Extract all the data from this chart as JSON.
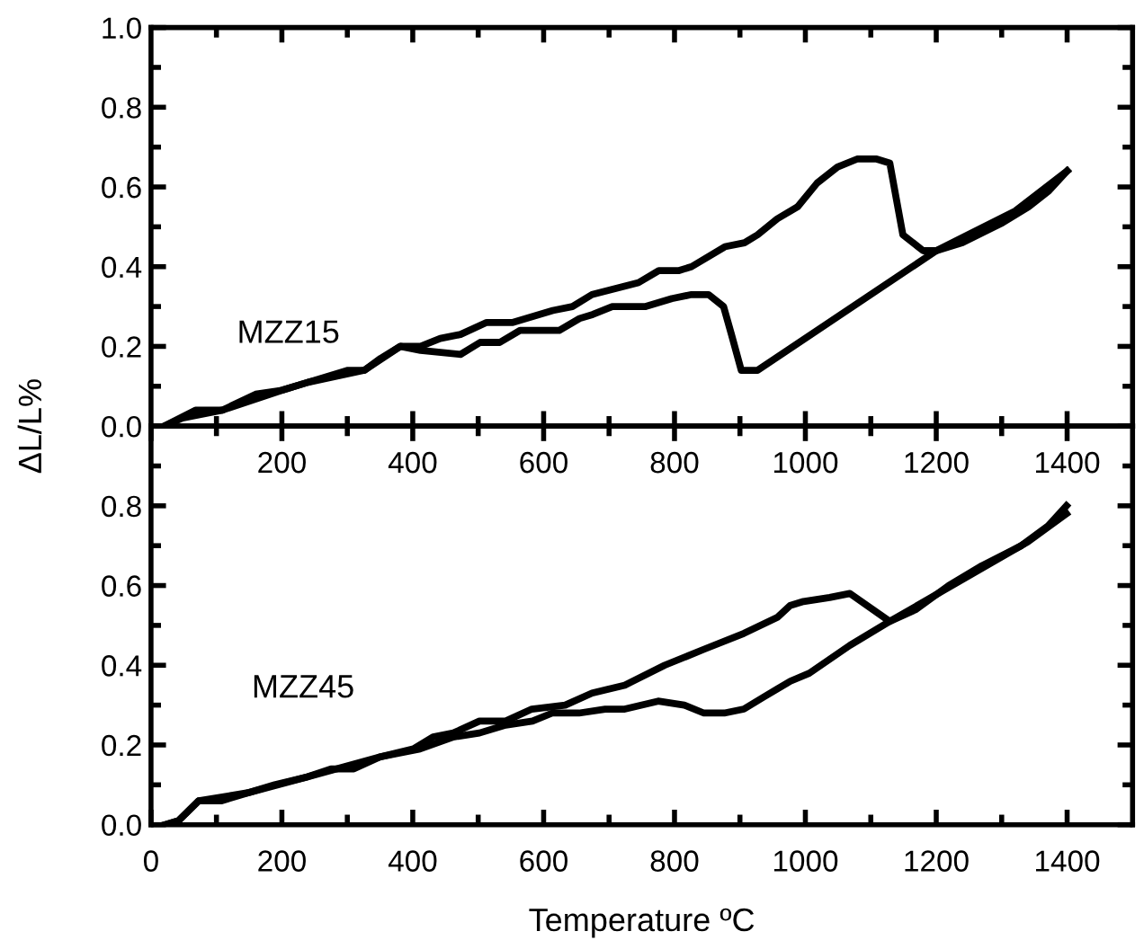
{
  "chart_data": [
    {
      "type": "line",
      "ylabel": "ΔL/L%",
      "annotations": [
        "MZZ15"
      ],
      "xlim": [
        0,
        1500
      ],
      "ylim": [
        0,
        1.0
      ],
      "xticks": [
        {
          "value": 100,
          "label": null
        },
        200,
        {
          "value": 300,
          "label": null
        },
        400,
        {
          "value": 500,
          "label": null
        },
        600,
        {
          "value": 700,
          "label": null
        },
        800,
        {
          "value": 900,
          "label": null
        },
        1000,
        {
          "value": 1100,
          "label": null
        },
        1200,
        {
          "value": 1300,
          "label": null
        },
        1400
      ],
      "yticks": [
        {
          "value": 0,
          "label": "0.0"
        },
        {
          "value": 0.1,
          "label": null
        },
        0.2,
        {
          "value": 0.3,
          "label": null
        },
        0.4,
        {
          "value": 0.5,
          "label": null
        },
        0.6,
        {
          "value": 0.7,
          "label": null
        },
        0.8,
        {
          "value": 0.9,
          "label": null
        },
        {
          "value": 1.0,
          "label": "1.0"
        }
      ],
      "grid": false,
      "legend": false,
      "marker": "none",
      "line_style": "solid",
      "series": [
        {
          "color": "#000000",
          "x": [
            20,
            68,
            109,
            160,
            200,
            240,
            301,
            326,
            351,
            381,
            412,
            442,
            473,
            513,
            553,
            614,
            644,
            674,
            745,
            776,
            806,
            826,
            877,
            907,
            927,
            957,
            988,
            1018,
            1049,
            1079,
            1109,
            1129,
            1139,
            1149,
            1180,
            1200,
            1240,
            1301,
            1341,
            1372,
            1400
          ],
          "values": [
            0.0,
            0.04,
            0.04,
            0.08,
            0.09,
            0.11,
            0.14,
            0.14,
            0.17,
            0.2,
            0.2,
            0.22,
            0.23,
            0.26,
            0.26,
            0.29,
            0.3,
            0.33,
            0.36,
            0.39,
            0.39,
            0.4,
            0.45,
            0.46,
            0.48,
            0.52,
            0.55,
            0.61,
            0.65,
            0.67,
            0.67,
            0.66,
            0.57,
            0.48,
            0.44,
            0.44,
            0.46,
            0.51,
            0.55,
            0.59,
            0.64
          ]
        },
        {
          "color": "#000000",
          "x": [
            1400,
            1321,
            1200,
            927,
            902,
            887,
            875,
            852,
            826,
            796,
            756,
            705,
            675,
            655,
            624,
            594,
            564,
            533,
            503,
            473,
            412,
            381,
            326,
            240,
            200,
            109,
            48,
            20
          ],
          "values": [
            0.64,
            0.54,
            0.44,
            0.14,
            0.14,
            0.23,
            0.3,
            0.33,
            0.33,
            0.32,
            0.3,
            0.3,
            0.28,
            0.27,
            0.24,
            0.24,
            0.24,
            0.21,
            0.21,
            0.18,
            0.19,
            0.2,
            0.14,
            0.11,
            0.09,
            0.04,
            0.02,
            0.0
          ]
        }
      ]
    },
    {
      "type": "line",
      "xlabel": "Temperature ºC",
      "annotations": [
        "MZZ45"
      ],
      "xlim": [
        0,
        1500
      ],
      "ylim": [
        0,
        1.0
      ],
      "xticks": [
        0,
        {
          "value": 100,
          "label": null
        },
        200,
        {
          "value": 300,
          "label": null
        },
        400,
        {
          "value": 500,
          "label": null
        },
        600,
        {
          "value": 700,
          "label": null
        },
        800,
        {
          "value": 900,
          "label": null
        },
        1000,
        {
          "value": 1100,
          "label": null
        },
        1200,
        {
          "value": 1300,
          "label": null
        },
        1400
      ],
      "yticks": [
        {
          "value": 0,
          "label": "0.0"
        },
        {
          "value": 0.1,
          "label": null
        },
        0.2,
        {
          "value": 0.3,
          "label": null
        },
        0.4,
        {
          "value": 0.5,
          "label": null
        },
        0.6,
        {
          "value": 0.7,
          "label": null
        },
        0.8,
        {
          "value": 0.9,
          "label": null
        }
      ],
      "grid": false,
      "legend": false,
      "marker": "none",
      "line_style": "solid",
      "series": [
        {
          "color": "#000000",
          "x": [
            22,
            42,
            73,
            108,
            148,
            189,
            239,
            275,
            310,
            350,
            401,
            431,
            462,
            502,
            542,
            582,
            633,
            674,
            724,
            785,
            845,
            906,
            957,
            977,
            997,
            1037,
            1068,
            1129,
            1169,
            1219,
            1270,
            1330,
            1371,
            1399
          ],
          "values": [
            0.0,
            0.01,
            0.06,
            0.06,
            0.08,
            0.1,
            0.12,
            0.14,
            0.14,
            0.17,
            0.19,
            0.22,
            0.23,
            0.26,
            0.26,
            0.29,
            0.3,
            0.33,
            0.35,
            0.4,
            0.44,
            0.48,
            0.52,
            0.55,
            0.56,
            0.57,
            0.58,
            0.51,
            0.54,
            0.6,
            0.65,
            0.7,
            0.75,
            0.8
          ]
        },
        {
          "color": "#000000",
          "x": [
            1399,
            1340,
            1129,
            1068,
            1006,
            977,
            936,
            906,
            876,
            845,
            815,
            775,
            724,
            694,
            654,
            613,
            583,
            542,
            502,
            462,
            411,
            350,
            239,
            148,
            73,
            42,
            22
          ],
          "values": [
            0.78,
            0.71,
            0.51,
            0.45,
            0.38,
            0.36,
            0.32,
            0.29,
            0.28,
            0.28,
            0.3,
            0.31,
            0.29,
            0.29,
            0.28,
            0.28,
            0.26,
            0.25,
            0.23,
            0.22,
            0.19,
            0.17,
            0.12,
            0.08,
            0.06,
            0.01,
            0.0
          ]
        }
      ]
    }
  ]
}
